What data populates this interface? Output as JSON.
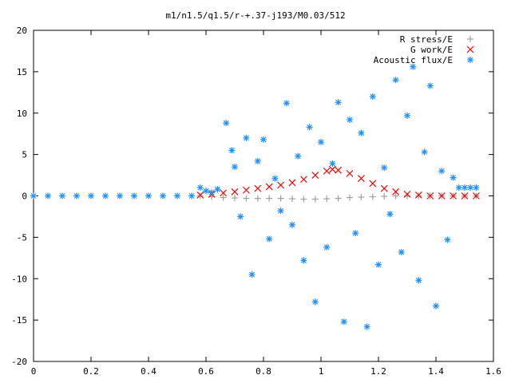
{
  "chart_data": {
    "type": "scatter",
    "title": "m1/n1.5/q1.5/r-+.37-j193/M0.03/512",
    "xlim": [
      0,
      1.6
    ],
    "ylim": [
      -20,
      20
    ],
    "x_ticks": [
      "0",
      "0.2",
      "0.4",
      "0.6",
      "0.8",
      "1",
      "1.2",
      "1.4",
      "1.6"
    ],
    "y_ticks": [
      "-20",
      "-15",
      "-10",
      "-5",
      "0",
      "5",
      "10",
      "15",
      "20"
    ],
    "grid": false,
    "legend_position": "top-right",
    "series": [
      {
        "name": "R stress/E",
        "marker": "plus",
        "color": "#a0a0a0",
        "points": [
          [
            0.58,
            0.0
          ],
          [
            0.62,
            -0.1
          ],
          [
            0.66,
            -0.2
          ],
          [
            0.7,
            -0.25
          ],
          [
            0.74,
            -0.3
          ],
          [
            0.78,
            -0.3
          ],
          [
            0.82,
            -0.3
          ],
          [
            0.86,
            -0.3
          ],
          [
            0.9,
            -0.35
          ],
          [
            0.94,
            -0.4
          ],
          [
            0.98,
            -0.4
          ],
          [
            1.02,
            -0.35
          ],
          [
            1.06,
            -0.3
          ],
          [
            1.1,
            -0.2
          ],
          [
            1.14,
            -0.15
          ],
          [
            1.18,
            -0.1
          ],
          [
            1.22,
            -0.05
          ],
          [
            1.26,
            0.0
          ],
          [
            1.3,
            0.0
          ],
          [
            1.34,
            0.0
          ],
          [
            1.38,
            0.0
          ],
          [
            1.42,
            0.0
          ],
          [
            1.46,
            0.0
          ],
          [
            1.5,
            0.0
          ],
          [
            1.54,
            0.0
          ]
        ]
      },
      {
        "name": "G work/E",
        "marker": "cross",
        "color": "#ff0000",
        "points": [
          [
            0.58,
            0.1
          ],
          [
            0.62,
            0.2
          ],
          [
            0.66,
            0.35
          ],
          [
            0.7,
            0.5
          ],
          [
            0.74,
            0.7
          ],
          [
            0.78,
            0.9
          ],
          [
            0.82,
            1.1
          ],
          [
            0.86,
            1.3
          ],
          [
            0.9,
            1.6
          ],
          [
            0.94,
            2.0
          ],
          [
            0.98,
            2.5
          ],
          [
            1.02,
            3.0
          ],
          [
            1.04,
            3.2
          ],
          [
            1.06,
            3.1
          ],
          [
            1.1,
            2.7
          ],
          [
            1.14,
            2.1
          ],
          [
            1.18,
            1.5
          ],
          [
            1.22,
            0.9
          ],
          [
            1.26,
            0.5
          ],
          [
            1.3,
            0.2
          ],
          [
            1.34,
            0.1
          ],
          [
            1.38,
            0.0
          ],
          [
            1.42,
            0.0
          ],
          [
            1.46,
            0.0
          ],
          [
            1.5,
            0.0
          ],
          [
            1.54,
            0.0
          ]
        ]
      },
      {
        "name": "Acoustic flux/E",
        "marker": "star",
        "color": "#1e90ff",
        "points": [
          [
            0.0,
            0.0
          ],
          [
            0.05,
            0.0
          ],
          [
            0.1,
            0.0
          ],
          [
            0.15,
            0.0
          ],
          [
            0.2,
            0.0
          ],
          [
            0.25,
            0.0
          ],
          [
            0.3,
            0.0
          ],
          [
            0.35,
            0.0
          ],
          [
            0.4,
            0.0
          ],
          [
            0.45,
            0.0
          ],
          [
            0.5,
            0.0
          ],
          [
            0.55,
            0.0
          ],
          [
            0.58,
            1.0
          ],
          [
            0.6,
            0.6
          ],
          [
            0.62,
            0.4
          ],
          [
            0.64,
            0.8
          ],
          [
            0.67,
            8.8
          ],
          [
            0.69,
            5.5
          ],
          [
            0.7,
            3.5
          ],
          [
            0.72,
            -2.5
          ],
          [
            0.74,
            7.0
          ],
          [
            0.76,
            -9.5
          ],
          [
            0.78,
            4.2
          ],
          [
            0.8,
            6.8
          ],
          [
            0.82,
            -5.2
          ],
          [
            0.84,
            2.1
          ],
          [
            0.86,
            -1.8
          ],
          [
            0.88,
            11.2
          ],
          [
            0.9,
            -3.5
          ],
          [
            0.92,
            4.8
          ],
          [
            0.94,
            -7.8
          ],
          [
            0.96,
            8.3
          ],
          [
            0.98,
            -12.8
          ],
          [
            1.0,
            6.5
          ],
          [
            1.02,
            -6.2
          ],
          [
            1.04,
            3.9
          ],
          [
            1.06,
            11.3
          ],
          [
            1.08,
            -15.2
          ],
          [
            1.1,
            9.2
          ],
          [
            1.12,
            -4.5
          ],
          [
            1.14,
            7.6
          ],
          [
            1.16,
            -15.8
          ],
          [
            1.18,
            12.0
          ],
          [
            1.2,
            -8.3
          ],
          [
            1.22,
            3.4
          ],
          [
            1.24,
            -2.2
          ],
          [
            1.26,
            14.0
          ],
          [
            1.28,
            -6.8
          ],
          [
            1.3,
            9.7
          ],
          [
            1.32,
            15.6
          ],
          [
            1.34,
            -10.2
          ],
          [
            1.36,
            5.3
          ],
          [
            1.38,
            13.3
          ],
          [
            1.4,
            -13.3
          ],
          [
            1.42,
            3.0
          ],
          [
            1.44,
            -5.3
          ],
          [
            1.46,
            2.2
          ],
          [
            1.48,
            1.0
          ],
          [
            1.5,
            1.0
          ],
          [
            1.52,
            1.0
          ],
          [
            1.54,
            1.0
          ]
        ]
      }
    ]
  }
}
